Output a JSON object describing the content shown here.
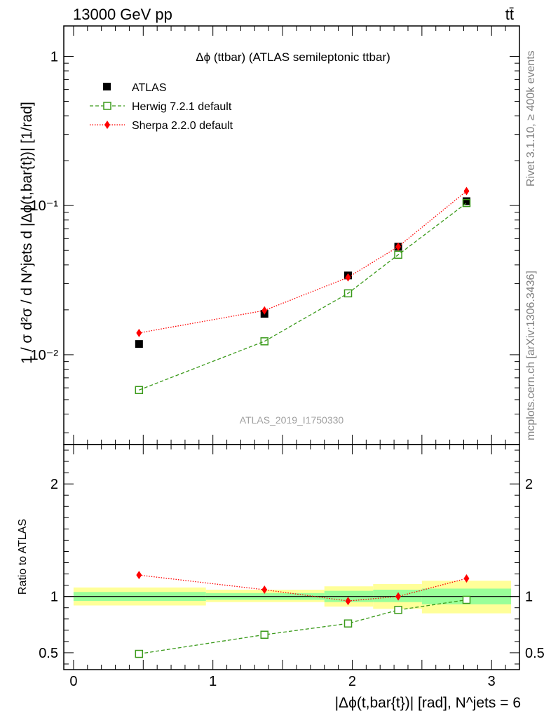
{
  "header": {
    "energy": "13000 GeV pp",
    "process": "tt̄",
    "side_rivet": "Rivet 3.1.10, ≥ 400k events",
    "side_mcplots": "mcplots.cern.ch [arXiv:1306.3436]"
  },
  "chart_data": [
    {
      "type": "scatter",
      "panel": "main",
      "title": "Δϕ (ttbar) (ATLAS semileptonic ttbar)",
      "ylabel": "1 / σ d²σ / d N^jets d |Δϕ(t,bar{t})| [1/rad]",
      "yscale": "log",
      "ylim": [
        0.0025,
        1.6
      ],
      "xlim": [
        -0.07,
        3.2
      ],
      "ytick_labels": [
        "1",
        "10⁻¹",
        "10⁻²"
      ],
      "watermark": "ATLAS_2019_I1750330",
      "legend_position": "top-left",
      "series": [
        {
          "name": "ATLAS",
          "marker": "square-filled",
          "color": "#000000",
          "x": [
            0.47,
            1.37,
            1.97,
            2.33,
            2.82
          ],
          "y": [
            0.0118,
            0.0188,
            0.034,
            0.053,
            0.107
          ]
        },
        {
          "name": "Herwig 7.2.1 default",
          "marker": "square-open",
          "line": "dashed",
          "color": "#3a9a1a",
          "x": [
            0.47,
            1.37,
            1.97,
            2.33,
            2.82
          ],
          "y": [
            0.0058,
            0.0123,
            0.0258,
            0.0468,
            0.104
          ]
        },
        {
          "name": "Sherpa 2.2.0 default",
          "marker": "diamond",
          "line": "dotted",
          "color": "#ff0000",
          "x": [
            0.47,
            1.37,
            1.97,
            2.33,
            2.82
          ],
          "y": [
            0.014,
            0.0198,
            0.033,
            0.053,
            0.125
          ]
        }
      ]
    },
    {
      "type": "scatter",
      "panel": "ratio",
      "ylabel": "Ratio to ATLAS",
      "xlabel": "|Δϕ(t,bar{t})| [rad], N^jets = 6",
      "ylim": [
        0.35,
        2.35
      ],
      "xlim": [
        -0.07,
        3.2
      ],
      "xticks": [
        0,
        1,
        2,
        3
      ],
      "yticks": [
        0.5,
        1,
        2
      ],
      "uncertainty_bands": {
        "edges": [
          0.0,
          0.95,
          1.8,
          2.15,
          2.5,
          3.14
        ],
        "stat_lo": [
          0.96,
          0.97,
          0.95,
          0.95,
          0.93
        ],
        "stat_hi": [
          1.04,
          1.03,
          1.05,
          1.06,
          1.07
        ],
        "total_lo": [
          0.92,
          0.95,
          0.91,
          0.89,
          0.85
        ],
        "total_hi": [
          1.08,
          1.06,
          1.09,
          1.11,
          1.14
        ]
      },
      "series": [
        {
          "name": "Herwig 7.2.1 default",
          "marker": "square-open",
          "line": "dashed",
          "color": "#3a9a1a",
          "x": [
            0.47,
            1.37,
            1.97,
            2.33,
            2.82
          ],
          "y": [
            0.49,
            0.66,
            0.76,
            0.88,
            0.97
          ]
        },
        {
          "name": "Sherpa 2.2.0 default",
          "marker": "diamond",
          "line": "dotted",
          "color": "#ff0000",
          "x": [
            0.47,
            1.37,
            1.97,
            2.33,
            2.82
          ],
          "y": [
            1.19,
            1.06,
            0.96,
            1.0,
            1.16
          ]
        }
      ]
    }
  ],
  "colors": {
    "stat_band": "#99ff99",
    "total_band": "#ffff99",
    "herwig": "#3a9a1a",
    "sherpa": "#ff0000",
    "atlas": "#000000",
    "watermark": "#a0a0a0"
  }
}
